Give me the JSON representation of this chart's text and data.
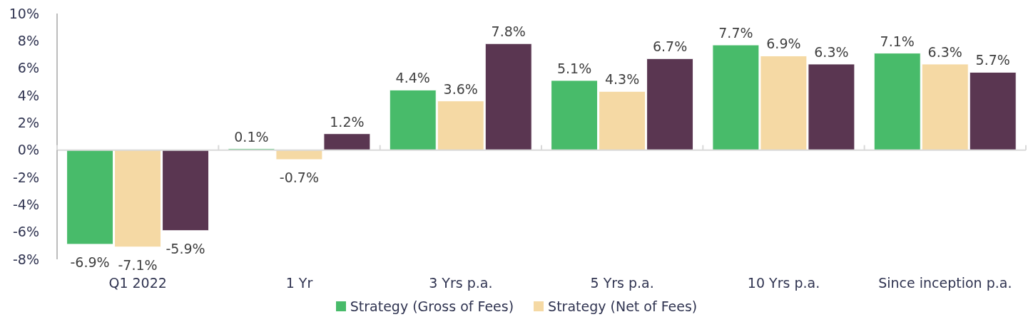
{
  "chart_data": {
    "type": "bar",
    "categories": [
      "Q1 2022",
      "1 Yr",
      "3 Yrs p.a.",
      "5 Yrs p.a.",
      "10 Yrs p.a.",
      "Since inception p.a."
    ],
    "series": [
      {
        "name": "Strategy (Gross of Fees)",
        "color": "#48bb6a",
        "values": [
          -6.9,
          0.1,
          4.4,
          5.1,
          7.7,
          7.1
        ],
        "value_labels": [
          "-6.9%",
          "0.1%",
          "4.4%",
          "5.1%",
          "7.7%",
          "7.1%"
        ]
      },
      {
        "name": "Strategy (Net of Fees)",
        "color": "#f5d9a4",
        "values": [
          -7.1,
          -0.7,
          3.6,
          4.3,
          6.9,
          6.3
        ],
        "value_labels": [
          "-7.1%",
          "-0.7%",
          "3.6%",
          "4.3%",
          "6.9%",
          "6.3%"
        ]
      },
      {
        "color": "#5a3651",
        "values": [
          -5.9,
          1.2,
          7.8,
          6.7,
          6.3,
          5.7
        ],
        "value_labels": [
          "-5.9%",
          "1.2%",
          "7.8%",
          "6.7%",
          "6.3%",
          "5.7%"
        ]
      }
    ],
    "ylim": [
      -8,
      10
    ],
    "yticks": [
      {
        "value": -8,
        "label": "-8%"
      },
      {
        "value": -6,
        "label": "-6%"
      },
      {
        "value": -4,
        "label": "-4%"
      },
      {
        "value": -2,
        "label": "-2%"
      },
      {
        "value": 0,
        "label": "0%"
      },
      {
        "value": 2,
        "label": "2%"
      },
      {
        "value": 4,
        "label": "4%"
      },
      {
        "value": 6,
        "label": "6%"
      },
      {
        "value": 8,
        "label": "8%"
      },
      {
        "value": 10,
        "label": "10%"
      }
    ],
    "legend": "bottom"
  }
}
